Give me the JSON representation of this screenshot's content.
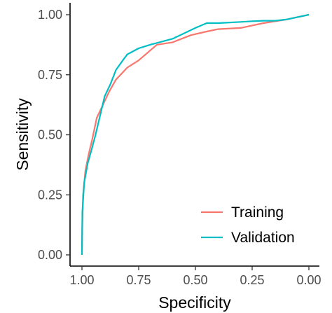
{
  "chart_data": {
    "type": "line",
    "xlabel": "Specificity",
    "ylabel": "Sensitivity",
    "x_reversed": true,
    "xlim": [
      1.0,
      0.0
    ],
    "ylim": [
      0.0,
      1.0
    ],
    "x_ticks": [
      1.0,
      0.75,
      0.5,
      0.25,
      0.0
    ],
    "x_tick_labels": [
      "1.00",
      "0.75",
      "0.50",
      "0.25",
      "0.00"
    ],
    "y_ticks": [
      0.0,
      0.25,
      0.5,
      0.75,
      1.0
    ],
    "y_tick_labels": [
      "0.00",
      "0.25",
      "0.50",
      "0.75",
      "1.00"
    ],
    "grid": false,
    "legend": "bottom-right",
    "series": [
      {
        "name": "Training",
        "color": "#F8766D",
        "x": [
          1.0,
          0.999,
          0.995,
          0.985,
          0.97,
          0.955,
          0.935,
          0.91,
          0.88,
          0.85,
          0.8,
          0.75,
          0.67,
          0.6,
          0.52,
          0.45,
          0.4,
          0.3,
          0.25,
          0.2,
          0.1,
          0.05,
          0.0
        ],
        "y": [
          0.0,
          0.1,
          0.25,
          0.35,
          0.42,
          0.48,
          0.57,
          0.62,
          0.68,
          0.73,
          0.78,
          0.81,
          0.875,
          0.885,
          0.915,
          0.93,
          0.94,
          0.945,
          0.955,
          0.965,
          0.98,
          0.99,
          1.0
        ]
      },
      {
        "name": "Validation",
        "color": "#00BFC4",
        "x": [
          1.0,
          0.998,
          0.99,
          0.975,
          0.96,
          0.94,
          0.92,
          0.9,
          0.875,
          0.85,
          0.82,
          0.8,
          0.75,
          0.7,
          0.6,
          0.5,
          0.45,
          0.4,
          0.3,
          0.25,
          0.2,
          0.15,
          0.1,
          0.05,
          0.0
        ],
        "y": [
          0.0,
          0.18,
          0.3,
          0.38,
          0.43,
          0.5,
          0.58,
          0.66,
          0.71,
          0.77,
          0.81,
          0.835,
          0.86,
          0.875,
          0.9,
          0.945,
          0.965,
          0.965,
          0.97,
          0.973,
          0.975,
          0.975,
          0.98,
          0.99,
          1.0
        ]
      }
    ]
  }
}
